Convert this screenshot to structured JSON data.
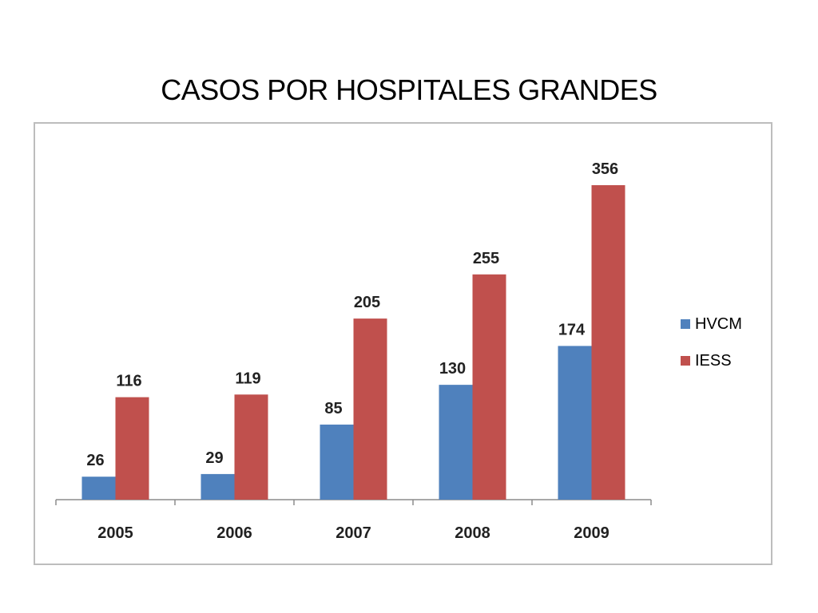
{
  "slide": {
    "title": "CASOS POR HOSPITALES GRANDES"
  },
  "chart_data": {
    "type": "bar",
    "title": "",
    "xlabel": "",
    "ylabel": "",
    "categories": [
      "2005",
      "2006",
      "2007",
      "2008",
      "2009"
    ],
    "series": [
      {
        "name": "HVCM",
        "values": [
          26,
          29,
          85,
          130,
          174
        ],
        "color": "#4f81bd"
      },
      {
        "name": "IESS",
        "values": [
          116,
          119,
          205,
          255,
          356
        ],
        "color": "#c0504d"
      }
    ],
    "data_labels": true,
    "ylim": [
      0,
      356
    ],
    "grid": false,
    "legend_position": "right"
  }
}
